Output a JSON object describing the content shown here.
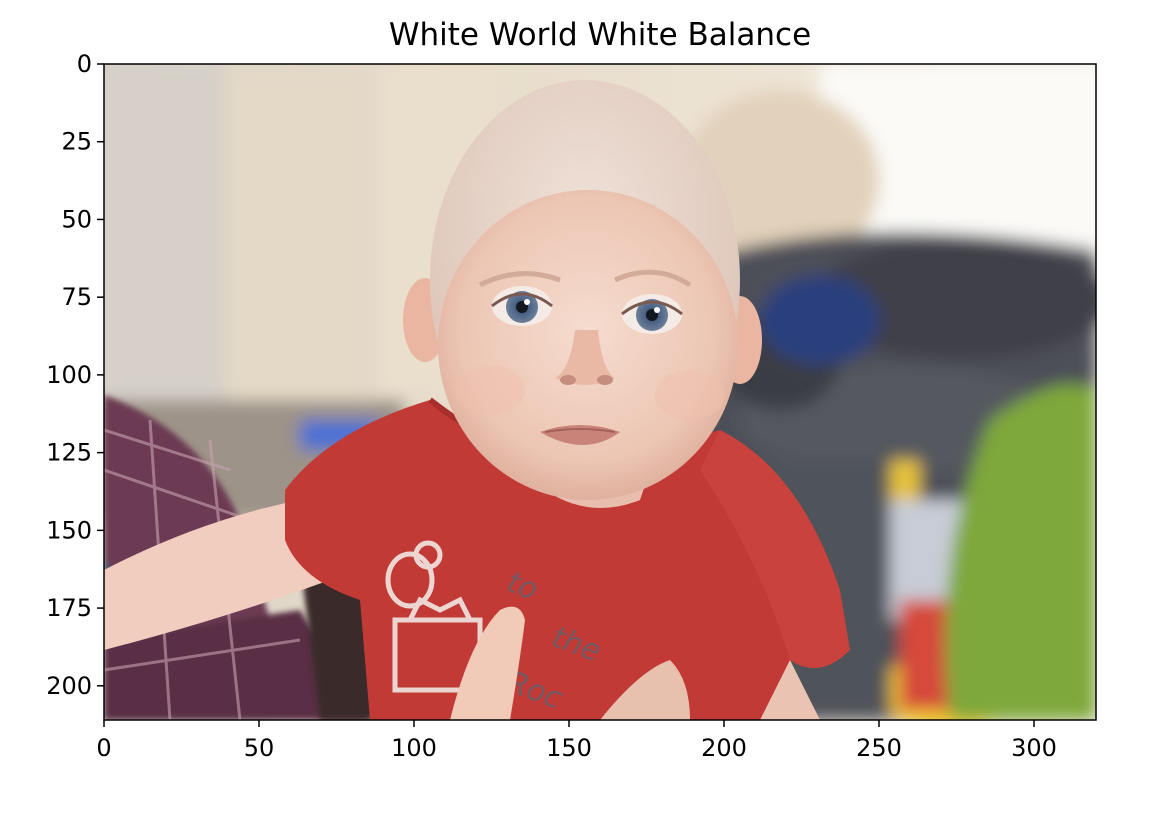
{
  "figure": {
    "title": "White World White Balance"
  },
  "image_axes": {
    "x_ticks": [
      0,
      50,
      100,
      150,
      200,
      250,
      300
    ],
    "y_ticks": [
      0,
      25,
      50,
      75,
      100,
      125,
      150,
      175,
      200
    ],
    "xlim": [
      0,
      320
    ],
    "ylim": [
      211,
      0
    ]
  },
  "colors": {
    "shirt": "#c23a36",
    "skin": "#eec8b7",
    "wall": "#e8ddcc",
    "sofa": "#4a4d55",
    "toy_green": "#7ea83a",
    "eyes": "#4b5f7e",
    "hair": "#ddc9ba",
    "background_window": "#f8f7f4"
  }
}
